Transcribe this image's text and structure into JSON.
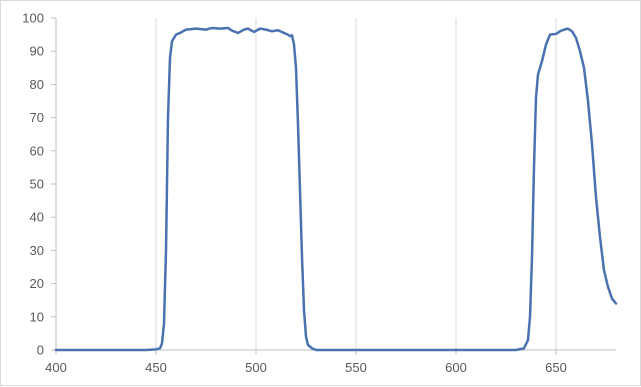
{
  "chart_data": {
    "type": "line",
    "title": "",
    "xlabel": "",
    "ylabel": "",
    "xlim": [
      400,
      680
    ],
    "ylim": [
      0,
      100
    ],
    "x_ticks": [
      400,
      450,
      500,
      550,
      600,
      650
    ],
    "y_ticks": [
      0,
      10,
      20,
      30,
      40,
      50,
      60,
      70,
      80,
      90,
      100
    ],
    "grid": {
      "vertical": true,
      "horizontal": false
    },
    "legend": "none",
    "series": [
      {
        "color": "#4a72b0",
        "points": [
          [
            400,
            0
          ],
          [
            445,
            0
          ],
          [
            450,
            0.2
          ],
          [
            452,
            0.5
          ],
          [
            453,
            2
          ],
          [
            454,
            8
          ],
          [
            455,
            30
          ],
          [
            456,
            70
          ],
          [
            457,
            88
          ],
          [
            458,
            93
          ],
          [
            460,
            95
          ],
          [
            462,
            95.5
          ],
          [
            465,
            96.5
          ],
          [
            470,
            96.8
          ],
          [
            475,
            96.5
          ],
          [
            478,
            97
          ],
          [
            482,
            96.8
          ],
          [
            486,
            97
          ],
          [
            488,
            96.2
          ],
          [
            491,
            95.5
          ],
          [
            494,
            96.5
          ],
          [
            496,
            96.8
          ],
          [
            499,
            95.8
          ],
          [
            502,
            96.8
          ],
          [
            505,
            96.5
          ],
          [
            508,
            96
          ],
          [
            511,
            96.3
          ],
          [
            514,
            95.5
          ],
          [
            516,
            95
          ],
          [
            517,
            94.5
          ],
          [
            518,
            94.8
          ],
          [
            519,
            92
          ],
          [
            520,
            85
          ],
          [
            521,
            68
          ],
          [
            522,
            48
          ],
          [
            523,
            28
          ],
          [
            524,
            12
          ],
          [
            525,
            4
          ],
          [
            526,
            1.5
          ],
          [
            528,
            0.5
          ],
          [
            530,
            0
          ],
          [
            630,
            0
          ],
          [
            634,
            0.5
          ],
          [
            636,
            3
          ],
          [
            637,
            10
          ],
          [
            638,
            28
          ],
          [
            639,
            55
          ],
          [
            640,
            76
          ],
          [
            641,
            83
          ],
          [
            643,
            87
          ],
          [
            645,
            92
          ],
          [
            647,
            95
          ],
          [
            650,
            95.2
          ],
          [
            652,
            96
          ],
          [
            654,
            96.5
          ],
          [
            656,
            96.8
          ],
          [
            658,
            96
          ],
          [
            660,
            94
          ],
          [
            662,
            90
          ],
          [
            664,
            85
          ],
          [
            666,
            75
          ],
          [
            668,
            62
          ],
          [
            670,
            46
          ],
          [
            672,
            34
          ],
          [
            674,
            24
          ],
          [
            676,
            19
          ],
          [
            678,
            15.5
          ],
          [
            680,
            14
          ]
        ]
      }
    ]
  }
}
